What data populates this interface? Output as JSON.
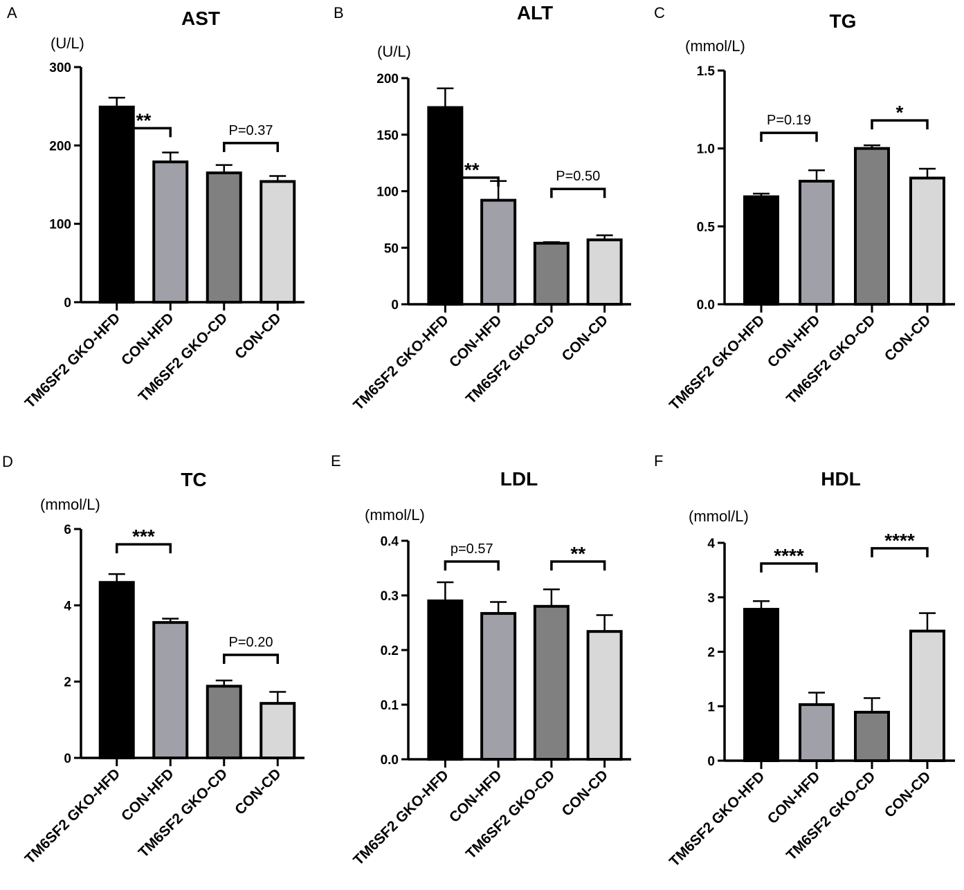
{
  "colors": {
    "TM6SF2 GKO-HFD": "#000000",
    "CON-HFD": "#a0a0a8",
    "TM6SF2 GKO-CD": "#808080",
    "CON-CD": "#d8d8d8",
    "axis": "#000000"
  },
  "chart_data": [
    {
      "panel": "A",
      "type": "bar",
      "title": "AST",
      "ylabel": "(U/L)",
      "categories": [
        "TM6SF2 GKO-HFD",
        "CON-HFD",
        "TM6SF2 GKO-CD",
        "CON-CD"
      ],
      "values": [
        249,
        179,
        165,
        154
      ],
      "errors": [
        12,
        12,
        10,
        7
      ],
      "ylim": [
        0,
        300
      ],
      "yticks": [
        0,
        100,
        200,
        300
      ],
      "significance": [
        {
          "from": 0,
          "to": 1,
          "label": "**",
          "y": 222
        },
        {
          "from": 2,
          "to": 3,
          "label": "P=0.37",
          "y": 203
        }
      ]
    },
    {
      "panel": "B",
      "type": "bar",
      "title": "ALT",
      "ylabel": "(U/L)",
      "categories": [
        "TM6SF2 GKO-HFD",
        "CON-HFD",
        "TM6SF2 GKO-CD",
        "CON-CD"
      ],
      "values": [
        174,
        92,
        54,
        57
      ],
      "errors": [
        17,
        17,
        1,
        4
      ],
      "ylim": [
        0,
        200
      ],
      "yticks": [
        0,
        50,
        100,
        150,
        200
      ],
      "significance": [
        {
          "from": 0,
          "to": 1,
          "label": "**",
          "y": 112
        },
        {
          "from": 2,
          "to": 3,
          "label": "P=0.50",
          "y": 102
        }
      ]
    },
    {
      "panel": "C",
      "type": "bar",
      "title": "TG",
      "ylabel": "(mmol/L)",
      "categories": [
        "TM6SF2 GKO-HFD",
        "CON-HFD",
        "TM6SF2 GKO-CD",
        "CON-CD"
      ],
      "values": [
        0.69,
        0.79,
        1.0,
        0.81
      ],
      "errors": [
        0.02,
        0.07,
        0.02,
        0.06
      ],
      "ylim": [
        0,
        1.5
      ],
      "yticks": [
        0.0,
        0.5,
        1.0,
        1.5
      ],
      "tick_decimals": 1,
      "significance": [
        {
          "from": 0,
          "to": 1,
          "label": "P=0.19",
          "y": 1.1
        },
        {
          "from": 2,
          "to": 3,
          "label": "*",
          "y": 1.18
        }
      ]
    },
    {
      "panel": "D",
      "type": "bar",
      "title": "TC",
      "ylabel": "(mmol/L)",
      "categories": [
        "TM6SF2 GKO-HFD",
        "CON-HFD",
        "TM6SF2 GKO-CD",
        "CON-CD"
      ],
      "values": [
        4.6,
        3.55,
        1.88,
        1.43
      ],
      "errors": [
        0.22,
        0.1,
        0.15,
        0.3
      ],
      "ylim": [
        0,
        6
      ],
      "yticks": [
        0,
        2,
        4,
        6
      ],
      "significance": [
        {
          "from": 0,
          "to": 1,
          "label": "***",
          "y": 5.6
        },
        {
          "from": 2,
          "to": 3,
          "label": "P=0.20",
          "y": 2.7
        }
      ]
    },
    {
      "panel": "E",
      "type": "bar",
      "title": "LDL",
      "ylabel": "(mmol/L)",
      "categories": [
        "TM6SF2 GKO-HFD",
        "CON-HFD",
        "TM6SF2 GKO-CD",
        "CON-CD"
      ],
      "values": [
        0.29,
        0.267,
        0.28,
        0.234
      ],
      "errors": [
        0.034,
        0.021,
        0.031,
        0.03
      ],
      "ylim": [
        0,
        0.4
      ],
      "yticks": [
        0.0,
        0.1,
        0.2,
        0.3,
        0.4
      ],
      "tick_decimals": 1,
      "significance": [
        {
          "from": 0,
          "to": 1,
          "label": "p=0.57",
          "y": 0.362
        },
        {
          "from": 2,
          "to": 3,
          "label": "**",
          "y": 0.362
        }
      ]
    },
    {
      "panel": "F",
      "type": "bar",
      "title": "HDL",
      "ylabel": "(mmol/L)",
      "categories": [
        "TM6SF2 GKO-HFD",
        "CON-HFD",
        "TM6SF2 GKO-CD",
        "CON-CD"
      ],
      "values": [
        2.78,
        1.03,
        0.89,
        2.38
      ],
      "errors": [
        0.15,
        0.22,
        0.26,
        0.33
      ],
      "ylim": [
        0,
        4
      ],
      "yticks": [
        0,
        1,
        2,
        3,
        4
      ],
      "significance": [
        {
          "from": 0,
          "to": 1,
          "label": "****",
          "y": 3.62
        },
        {
          "from": 2,
          "to": 3,
          "label": "****",
          "y": 3.9
        }
      ]
    }
  ]
}
